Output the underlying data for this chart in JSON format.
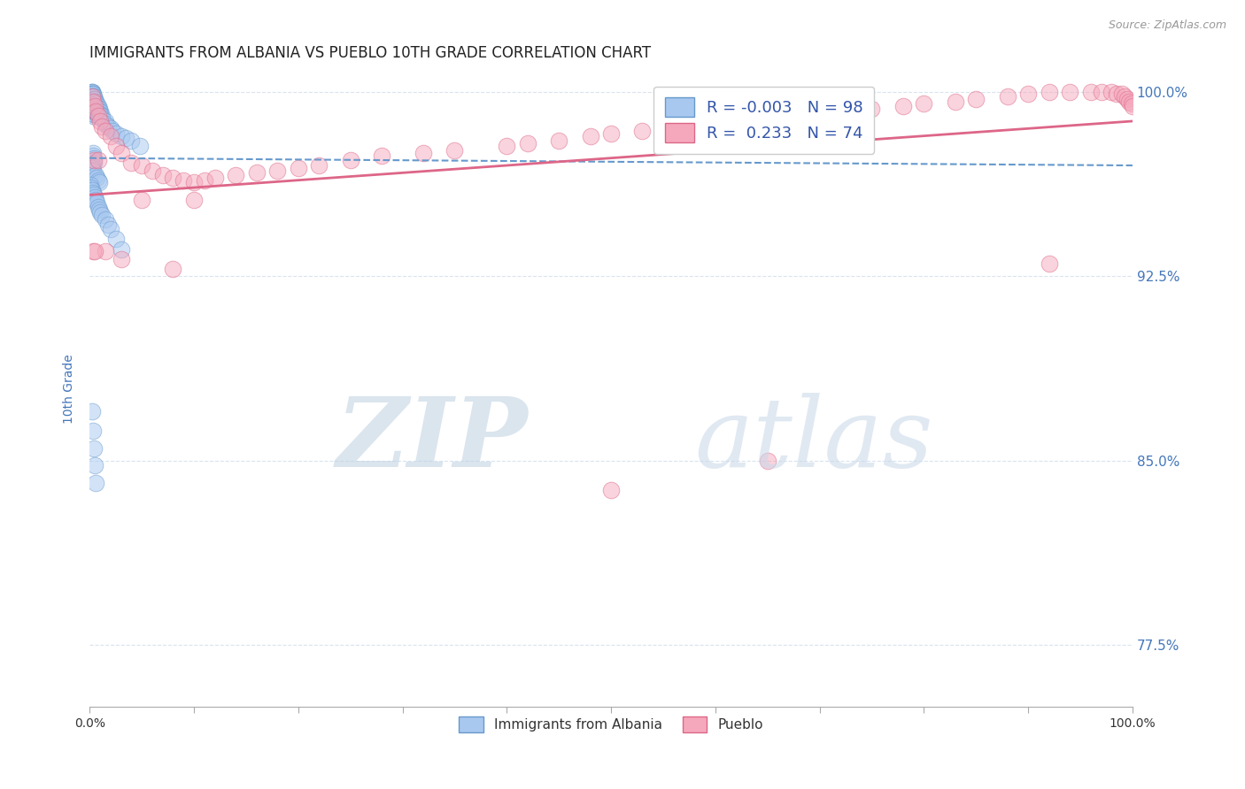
{
  "title": "IMMIGRANTS FROM ALBANIA VS PUEBLO 10TH GRADE CORRELATION CHART",
  "source": "Source: ZipAtlas.com",
  "ylabel": "10th Grade",
  "ytick_labels": [
    "77.5%",
    "85.0%",
    "92.5%",
    "100.0%"
  ],
  "ytick_values": [
    0.775,
    0.85,
    0.925,
    1.0
  ],
  "legend_blue_label": "Immigrants from Albania",
  "legend_pink_label": "Pueblo",
  "blue_color": "#A8C8F0",
  "pink_color": "#F5A8BC",
  "trend_blue_color": "#6699CC",
  "trend_pink_color": "#DD6688",
  "background_color": "#FFFFFF",
  "watermark_zip_color": "#C0D0E0",
  "watermark_atlas_color": "#C8D8E8",
  "blue_dots_x": [
    0.002,
    0.002,
    0.002,
    0.002,
    0.002,
    0.002,
    0.002,
    0.002,
    0.002,
    0.002,
    0.003,
    0.003,
    0.003,
    0.003,
    0.003,
    0.003,
    0.003,
    0.003,
    0.003,
    0.003,
    0.004,
    0.004,
    0.004,
    0.004,
    0.004,
    0.004,
    0.004,
    0.004,
    0.005,
    0.005,
    0.005,
    0.005,
    0.005,
    0.005,
    0.006,
    0.006,
    0.006,
    0.006,
    0.006,
    0.007,
    0.007,
    0.007,
    0.007,
    0.008,
    0.008,
    0.008,
    0.009,
    0.009,
    0.009,
    0.01,
    0.01,
    0.01,
    0.012,
    0.012,
    0.015,
    0.015,
    0.018,
    0.02,
    0.022,
    0.025,
    0.03,
    0.035,
    0.04,
    0.048,
    0.003,
    0.003,
    0.004,
    0.004,
    0.002,
    0.002,
    0.003,
    0.006,
    0.007,
    0.008,
    0.009,
    0.001,
    0.001,
    0.002,
    0.003,
    0.004,
    0.005,
    0.006,
    0.007,
    0.008,
    0.009,
    0.01,
    0.012,
    0.015,
    0.018,
    0.02,
    0.025,
    0.03,
    0.002,
    0.003,
    0.004,
    0.005,
    0.006
  ],
  "blue_dots_y": [
    1.0,
    1.0,
    1.0,
    0.999,
    0.999,
    0.999,
    0.998,
    0.998,
    0.997,
    0.997,
    0.999,
    0.998,
    0.997,
    0.996,
    0.995,
    0.994,
    0.993,
    0.992,
    0.991,
    0.99,
    0.998,
    0.997,
    0.996,
    0.995,
    0.994,
    0.993,
    0.992,
    0.991,
    0.997,
    0.996,
    0.995,
    0.994,
    0.993,
    0.992,
    0.996,
    0.995,
    0.994,
    0.993,
    0.992,
    0.995,
    0.994,
    0.993,
    0.992,
    0.994,
    0.993,
    0.992,
    0.993,
    0.992,
    0.991,
    0.992,
    0.991,
    0.99,
    0.99,
    0.989,
    0.988,
    0.987,
    0.986,
    0.985,
    0.984,
    0.983,
    0.982,
    0.981,
    0.98,
    0.978,
    0.975,
    0.974,
    0.973,
    0.971,
    0.97,
    0.969,
    0.968,
    0.966,
    0.965,
    0.964,
    0.963,
    0.962,
    0.961,
    0.96,
    0.959,
    0.958,
    0.957,
    0.956,
    0.955,
    0.953,
    0.952,
    0.951,
    0.95,
    0.948,
    0.946,
    0.944,
    0.94,
    0.936,
    0.87,
    0.862,
    0.855,
    0.848,
    0.841
  ],
  "pink_dots_x": [
    0.002,
    0.003,
    0.005,
    0.006,
    0.008,
    0.01,
    0.012,
    0.015,
    0.02,
    0.025,
    0.03,
    0.04,
    0.05,
    0.06,
    0.07,
    0.08,
    0.09,
    0.1,
    0.11,
    0.12,
    0.14,
    0.16,
    0.18,
    0.2,
    0.22,
    0.25,
    0.28,
    0.32,
    0.35,
    0.4,
    0.42,
    0.45,
    0.48,
    0.5,
    0.53,
    0.55,
    0.58,
    0.6,
    0.63,
    0.65,
    0.68,
    0.7,
    0.72,
    0.75,
    0.78,
    0.8,
    0.83,
    0.85,
    0.88,
    0.9,
    0.92,
    0.94,
    0.96,
    0.97,
    0.98,
    0.985,
    0.99,
    0.992,
    0.995,
    0.997,
    0.999,
    1.0,
    0.05,
    0.1,
    0.004,
    0.008,
    0.015,
    0.003,
    0.005,
    0.5,
    0.65,
    0.92,
    0.03,
    0.08
  ],
  "pink_dots_y": [
    0.998,
    0.996,
    0.994,
    0.992,
    0.99,
    0.988,
    0.986,
    0.984,
    0.982,
    0.978,
    0.975,
    0.971,
    0.97,
    0.968,
    0.966,
    0.965,
    0.964,
    0.963,
    0.964,
    0.965,
    0.966,
    0.967,
    0.968,
    0.969,
    0.97,
    0.972,
    0.974,
    0.975,
    0.976,
    0.978,
    0.979,
    0.98,
    0.982,
    0.983,
    0.984,
    0.985,
    0.986,
    0.987,
    0.988,
    0.989,
    0.99,
    0.991,
    0.992,
    0.993,
    0.994,
    0.995,
    0.996,
    0.997,
    0.998,
    0.999,
    1.0,
    1.0,
    1.0,
    1.0,
    1.0,
    0.999,
    0.999,
    0.998,
    0.997,
    0.996,
    0.995,
    0.994,
    0.956,
    0.956,
    0.972,
    0.972,
    0.935,
    0.935,
    0.935,
    0.838,
    0.85,
    0.93,
    0.932,
    0.928
  ],
  "blue_trend_x": [
    0.0,
    1.0
  ],
  "blue_trend_y_start": 0.973,
  "blue_trend_y_end": 0.97,
  "pink_trend_x": [
    0.0,
    1.0
  ],
  "pink_trend_y_start": 0.958,
  "pink_trend_y_end": 0.988,
  "xmin": 0.0,
  "xmax": 1.0,
  "ymin": 0.75,
  "ymax": 1.008,
  "grid_color": "#D8E4F0",
  "title_fontsize": 12,
  "axis_label_fontsize": 10,
  "tick_fontsize": 10,
  "dot_size": 180,
  "dot_alpha": 0.5,
  "xtick_positions": [
    0.0,
    0.1,
    0.2,
    0.3,
    0.4,
    0.5,
    0.6,
    0.7,
    0.8,
    0.9,
    1.0
  ]
}
